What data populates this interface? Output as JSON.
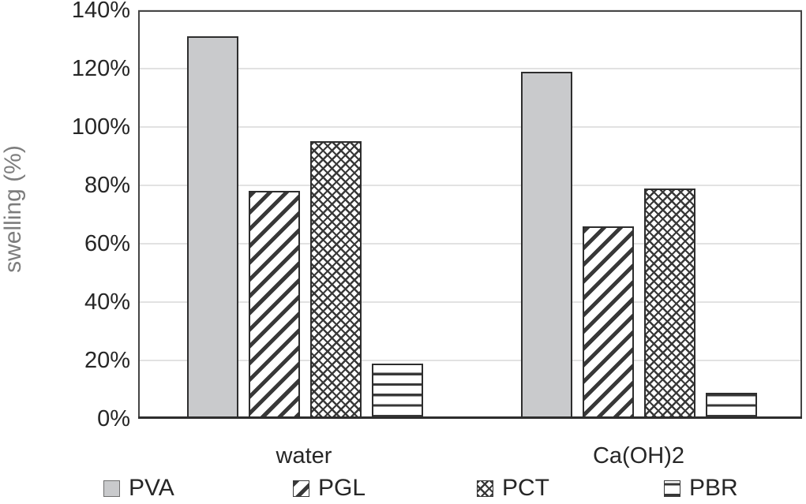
{
  "chart_data": {
    "type": "bar",
    "title": "",
    "categories": [
      "water",
      "Ca(OH)2"
    ],
    "series": [
      {
        "name": "PVA",
        "pattern": "solid-gray",
        "values": [
          131,
          119
        ]
      },
      {
        "name": "PGL",
        "pattern": "diagonal-up-hatch",
        "values": [
          78,
          66
        ]
      },
      {
        "name": "PCT",
        "pattern": "diagonal-crosshatch",
        "values": [
          95,
          79
        ]
      },
      {
        "name": "PBR",
        "pattern": "horizontal-lines",
        "values": [
          19,
          9
        ]
      }
    ],
    "xlabel": "",
    "ylabel": "swelling (%)",
    "ylim": [
      0,
      140
    ],
    "ytick_step": 20,
    "ytick_labels": [
      "0%",
      "20%",
      "40%",
      "60%",
      "80%",
      "100%",
      "120%",
      "140%"
    ],
    "grid": true,
    "legend_position": "bottom",
    "legend_entries": [
      "PVA",
      "PGL",
      "PCT",
      "PBR"
    ]
  },
  "colors": {
    "background": "#ffffff",
    "bar_solid_fill": "#c9cacc",
    "pattern_foreground": "#383838",
    "bar_border": "#2e2e2e",
    "gridline": "#e2e2e2",
    "plot_border": "#454545",
    "baseline": "#2d2d2d",
    "tick_text": "#262626",
    "axis_title_text": "#7d7d7d"
  }
}
